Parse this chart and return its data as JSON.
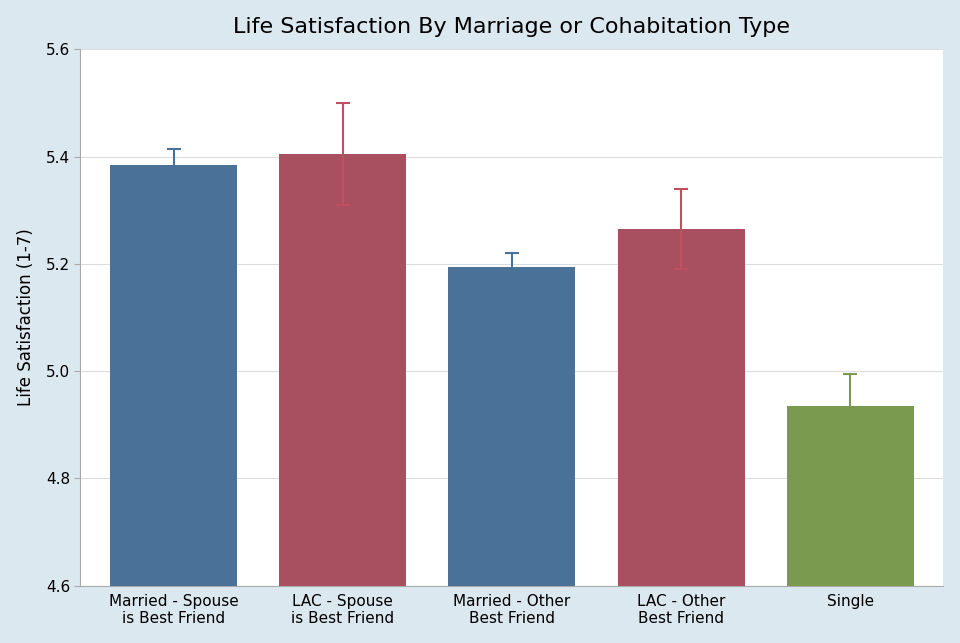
{
  "title": "Life Satisfaction By Marriage or Cohabitation Type",
  "ylabel": "Life Satisfaction (1-7)",
  "ylim": [
    4.6,
    5.6
  ],
  "yticks": [
    4.6,
    4.8,
    5.0,
    5.2,
    5.4,
    5.6
  ],
  "categories": [
    "Married - Spouse\nis Best Friend",
    "LAC - Spouse\nis Best Friend",
    "Married - Other\nBest Friend",
    "LAC - Other\nBest Friend",
    "Single"
  ],
  "values": [
    5.385,
    5.405,
    5.195,
    5.265,
    4.935
  ],
  "errors": [
    0.03,
    0.095,
    0.025,
    0.075,
    0.06
  ],
  "bar_colors": [
    "#4a7299",
    "#a85060",
    "#4a7299",
    "#a85060",
    "#7a9a50"
  ],
  "error_colors": [
    "#4a7299",
    "#c05060",
    "#4a7299",
    "#c05060",
    "#7a9a50"
  ],
  "outer_bg_color": "#dce8f0",
  "plot_bg_color": "#ffffff",
  "grid_color": "#dddddd",
  "title_fontsize": 16,
  "label_fontsize": 12,
  "tick_fontsize": 11,
  "bar_width": 0.75
}
